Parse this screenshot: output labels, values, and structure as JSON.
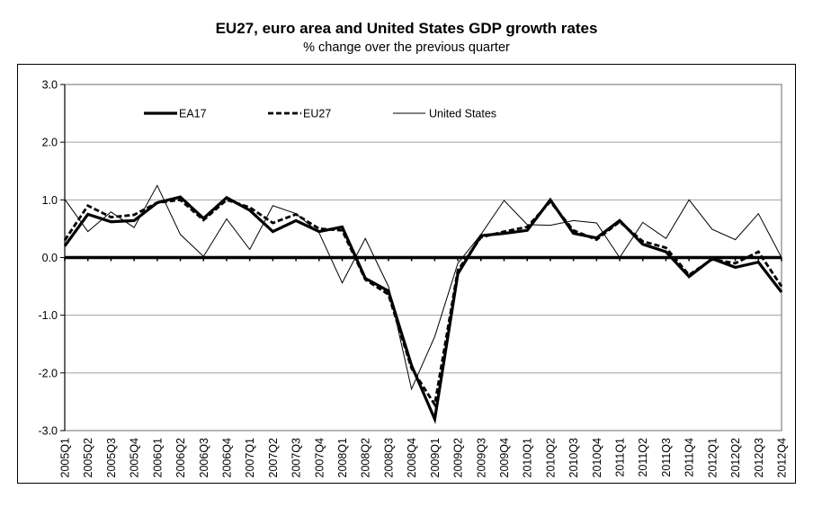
{
  "chart_data": {
    "type": "line",
    "title": "EU27, euro area and United States GDP growth rates",
    "subtitle": "% change over the previous quarter",
    "xlabel": "",
    "ylabel": "",
    "ylim": [
      -3.0,
      3.0
    ],
    "yticks": [
      "3.0",
      "2.0",
      "1.0",
      "0.0",
      "-1.0",
      "-2.0",
      "-3.0"
    ],
    "ytick_values": [
      3,
      2,
      1,
      0,
      -1,
      -2,
      -3
    ],
    "grid": true,
    "legend_position": "top-left-inside",
    "categories": [
      "2005Q1",
      "2005Q2",
      "2005Q3",
      "2005Q4",
      "2006Q1",
      "2006Q2",
      "2006Q3",
      "2006Q4",
      "2007Q1",
      "2007Q2",
      "2007Q3",
      "2007Q4",
      "2008Q1",
      "2008Q2",
      "2008Q3",
      "2008Q4",
      "2009Q1",
      "2009Q2",
      "2009Q3",
      "2009Q4",
      "2010Q1",
      "2010Q2",
      "2010Q3",
      "2010Q4",
      "2011Q1",
      "2011Q2",
      "2011Q3",
      "2011Q4",
      "2012Q1",
      "2012Q2",
      "2012Q3",
      "2012Q4"
    ],
    "series": [
      {
        "name": "EA17",
        "style": "thick-solid",
        "values": [
          0.2,
          0.75,
          0.62,
          0.64,
          0.95,
          1.05,
          0.68,
          1.04,
          0.82,
          0.45,
          0.64,
          0.45,
          0.53,
          -0.36,
          -0.58,
          -1.87,
          -2.8,
          -0.28,
          0.38,
          0.42,
          0.47,
          1.0,
          0.42,
          0.34,
          0.64,
          0.23,
          0.1,
          -0.33,
          -0.02,
          -0.17,
          -0.08,
          -0.6
        ]
      },
      {
        "name": "EU27",
        "style": "thick-dashed",
        "values": [
          0.3,
          0.9,
          0.7,
          0.74,
          0.95,
          1.0,
          0.65,
          1.0,
          0.87,
          0.6,
          0.75,
          0.5,
          0.47,
          -0.38,
          -0.64,
          -1.92,
          -2.55,
          -0.22,
          0.35,
          0.45,
          0.53,
          0.97,
          0.47,
          0.31,
          0.62,
          0.28,
          0.17,
          -0.3,
          -0.03,
          -0.1,
          0.1,
          -0.5
        ]
      },
      {
        "name": "United States",
        "style": "thin-solid",
        "values": [
          1.01,
          0.45,
          0.79,
          0.52,
          1.25,
          0.4,
          0.02,
          0.67,
          0.14,
          0.9,
          0.76,
          0.43,
          -0.44,
          0.33,
          -0.5,
          -2.28,
          -1.37,
          -0.1,
          0.4,
          0.99,
          0.57,
          0.56,
          0.64,
          0.6,
          0.0,
          0.61,
          0.33,
          1.0,
          0.49,
          0.31,
          0.76,
          0.0
        ]
      }
    ]
  }
}
